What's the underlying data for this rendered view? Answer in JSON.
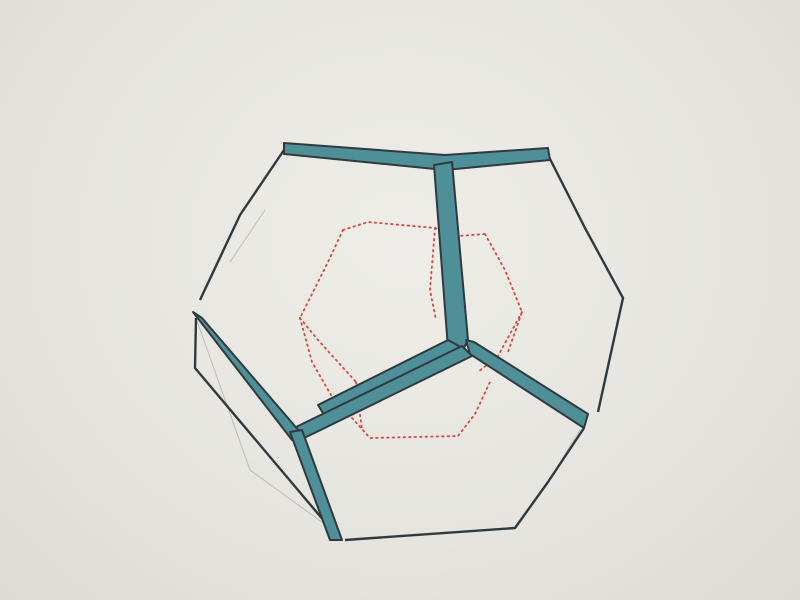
{
  "drawing": {
    "subject": "",
    "colors": {
      "paper": "#e6e5df",
      "edge_fill": "#4f8f97",
      "edge_stroke": "#2f3a40",
      "pencil": "#9a9a98",
      "hidden_dots": "#d9473e"
    }
  }
}
